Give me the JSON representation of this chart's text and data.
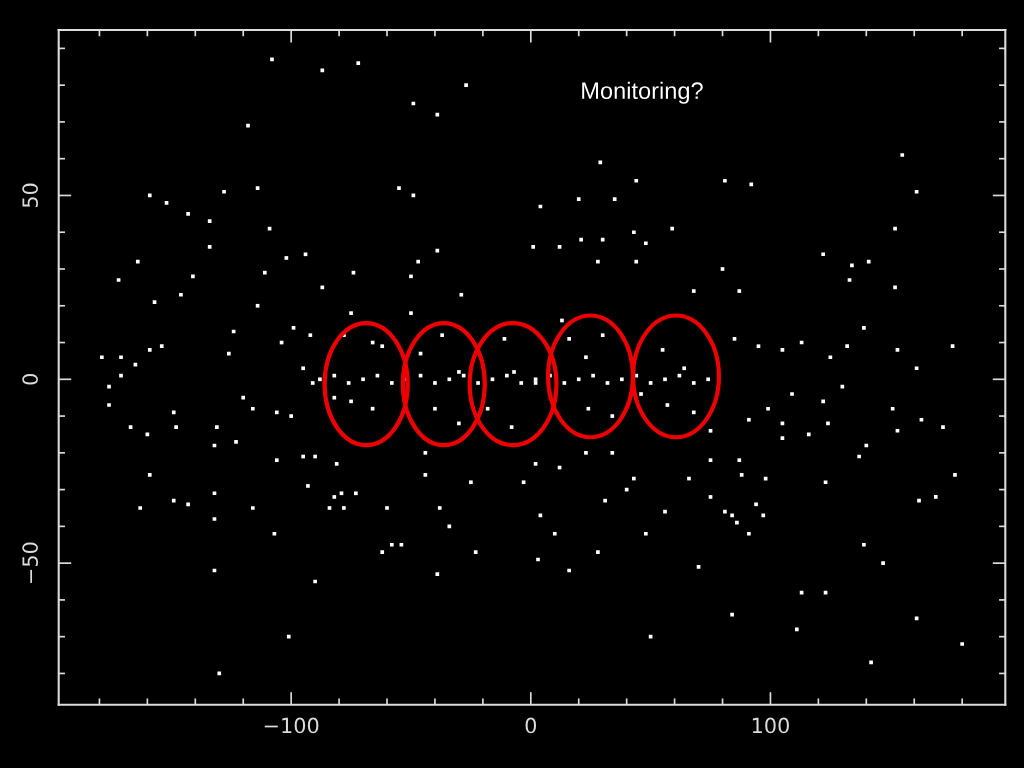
{
  "chart_data": {
    "type": "scatter",
    "annotations": [
      "Monitoring?"
    ],
    "color": "#ffffff",
    "marker": "square",
    "x": [
      -108,
      -87,
      -72,
      -49,
      -39,
      -27,
      -118,
      -55,
      -49,
      -159,
      -152,
      -143,
      -134,
      -128,
      -114,
      -109,
      -134,
      -164,
      -172,
      -157,
      -146,
      -141,
      -114,
      -111,
      -102,
      -94,
      -87,
      -74,
      -39,
      -47,
      -50,
      -29,
      -75,
      -99,
      -124,
      -179,
      -171,
      -165,
      -159,
      -154,
      -171,
      -126,
      -104,
      -92,
      -95,
      29,
      44,
      81,
      92,
      155,
      161,
      152,
      20,
      35,
      4,
      59,
      1,
      12,
      21,
      30,
      43,
      48,
      28,
      44,
      80,
      122,
      134,
      141,
      133,
      152,
      87,
      68,
      139,
      176,
      153,
      132,
      125,
      113,
      105,
      85,
      95,
      161,
      -176,
      -176,
      -167,
      -160,
      -148,
      -149,
      -131,
      -132,
      -123,
      -120,
      -116,
      -106,
      -100,
      -159,
      -149,
      -143,
      -163,
      -132,
      -132,
      -116,
      -106,
      -95,
      -90,
      -93,
      -81,
      -107,
      -82,
      -79,
      -84,
      -78,
      -73,
      -58,
      -62,
      -54,
      -60,
      -38,
      -34,
      -39,
      -23,
      -44,
      -25,
      -44,
      -132,
      -90,
      -101,
      -130,
      3,
      16,
      10,
      28,
      4,
      31,
      40,
      48,
      56,
      70,
      50,
      84,
      75,
      81,
      84,
      86,
      94,
      97,
      91,
      75,
      87,
      66,
      43,
      88,
      98,
      12,
      2,
      -3,
      23,
      34,
      177,
      169,
      162,
      139,
      147,
      123,
      137,
      140,
      113,
      123,
      111,
      161,
      180,
      142,
      163,
      172,
      153,
      151,
      124,
      116,
      105,
      105,
      122,
      130,
      99,
      109,
      91,
      75,
      -78,
      -66,
      -62,
      -75,
      -66,
      -82,
      -91,
      -46,
      -37,
      -30,
      -40,
      -30,
      -11,
      -7,
      -18,
      -8,
      2,
      16,
      23,
      30,
      24,
      34,
      55,
      64,
      57,
      68,
      46,
      13,
      -50,
      -88,
      -82,
      -76,
      -70,
      -64,
      -58,
      -52,
      -46,
      -40,
      -34,
      -28,
      -22,
      -16,
      -10,
      -4,
      2,
      8,
      14,
      20,
      26,
      32,
      38,
      44,
      50,
      56,
      62,
      68,
      74
    ],
    "values": [
      87,
      84,
      86,
      75,
      72,
      80,
      69,
      52,
      50,
      50,
      48,
      45,
      43,
      51,
      52,
      41,
      36,
      32,
      27,
      21,
      23,
      28,
      20,
      29,
      33,
      34,
      25,
      29,
      35,
      32,
      28,
      23,
      18,
      14,
      13,
      6,
      6,
      4,
      8,
      9,
      1,
      7,
      10,
      12,
      3,
      59,
      54,
      54,
      53,
      61,
      51,
      41,
      49,
      49,
      47,
      41,
      36,
      36,
      38,
      38,
      40,
      37,
      32,
      32,
      30,
      34,
      31,
      32,
      27,
      25,
      24,
      24,
      14,
      9,
      8,
      9,
      6,
      10,
      8,
      11,
      9,
      3,
      -2,
      -7,
      -13,
      -15,
      -13,
      -9,
      -13,
      -18,
      -17,
      -5,
      -8,
      -9,
      -10,
      -26,
      -33,
      -34,
      -35,
      -31,
      -38,
      -35,
      -22,
      -21,
      -21,
      -29,
      -23,
      -42,
      -32,
      -31,
      -35,
      -35,
      -31,
      -45,
      -47,
      -45,
      -35,
      -35,
      -40,
      -53,
      -47,
      -26,
      -28,
      -20,
      -52,
      -55,
      -70,
      -80,
      -49,
      -52,
      -42,
      -47,
      -37,
      -33,
      -30,
      -42,
      -36,
      -51,
      -70,
      -64,
      -32,
      -36,
      -37,
      -39,
      -34,
      -37,
      -42,
      -22,
      -22,
      -27,
      -27,
      -26,
      -27,
      -24,
      -23,
      -28,
      -20,
      -20,
      -26,
      -32,
      -33,
      -45,
      -50,
      -28,
      -21,
      -18,
      -58,
      -58,
      -68,
      -65,
      -72,
      -77,
      -11,
      -13,
      -14,
      -8,
      -12,
      -15,
      -12,
      -16,
      -6,
      -2,
      -8,
      -4,
      -11,
      -14,
      12,
      10,
      9,
      -6,
      -8,
      -5,
      -1,
      7,
      12,
      2,
      -8,
      -12,
      11,
      2,
      -8,
      -13,
      -1,
      11,
      6,
      12,
      -8,
      -10,
      8,
      3,
      -7,
      -9,
      -4,
      16,
      18,
      0,
      1,
      -1,
      0,
      1,
      -1,
      0,
      1,
      -1,
      0,
      1,
      -1,
      0,
      1,
      -1,
      0,
      1,
      -1,
      0,
      1,
      -1,
      0,
      1,
      -1,
      0,
      1,
      -1,
      0
    ],
    "xlim": [
      -197,
      198
    ],
    "ylim": [
      -88.5,
      95
    ],
    "xticks": [
      {
        "value": -180,
        "label": null
      },
      {
        "value": -160,
        "label": null
      },
      {
        "value": -140,
        "label": null
      },
      {
        "value": -120,
        "label": null
      },
      {
        "value": -100,
        "label": "−100"
      },
      {
        "value": -80,
        "label": null
      },
      {
        "value": -60,
        "label": null
      },
      {
        "value": -40,
        "label": null
      },
      {
        "value": -20,
        "label": null
      },
      0,
      {
        "value": 20,
        "label": null
      },
      {
        "value": 40,
        "label": null
      },
      {
        "value": 60,
        "label": null
      },
      {
        "value": 80,
        "label": null
      },
      100,
      {
        "value": 120,
        "label": null
      },
      {
        "value": 140,
        "label": null
      },
      {
        "value": 160,
        "label": null
      },
      {
        "value": 180,
        "label": null
      }
    ],
    "yticks": [
      {
        "value": -80,
        "label": null
      },
      {
        "value": -70,
        "label": null
      },
      {
        "value": -60,
        "label": null
      },
      {
        "value": -50,
        "label": "−50"
      },
      {
        "value": -40,
        "label": null
      },
      {
        "value": -30,
        "label": null
      },
      {
        "value": -20,
        "label": null
      },
      {
        "value": -10,
        "label": null
      },
      0,
      {
        "value": 10,
        "label": null
      },
      {
        "value": 20,
        "label": null
      },
      {
        "value": 30,
        "label": null
      },
      {
        "value": 40,
        "label": null
      },
      50,
      {
        "value": 60,
        "label": null
      },
      {
        "value": 70,
        "label": null
      },
      {
        "value": 80,
        "label": null
      },
      {
        "value": 90,
        "label": null
      }
    ]
  }
}
